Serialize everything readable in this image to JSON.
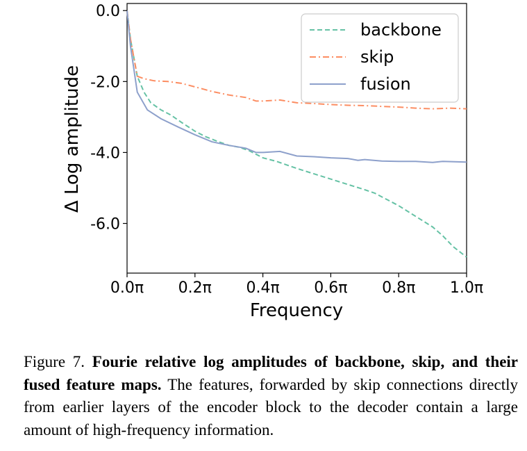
{
  "chart_data": {
    "type": "line",
    "xlabel": "Frequency",
    "ylabel": "Δ Log amplitude",
    "xlim": [
      0.0,
      1.0
    ],
    "ylim": [
      -7.4,
      0.2
    ],
    "xticks": [
      0.0,
      0.2,
      0.4,
      0.6,
      0.8,
      1.0
    ],
    "xtick_labels": [
      "0.0π",
      "0.2π",
      "0.4π",
      "0.6π",
      "0.8π",
      "1.0π"
    ],
    "yticks": [
      0.0,
      -2.0,
      -4.0,
      -6.0
    ],
    "ytick_labels": [
      "0.0",
      "-2.0",
      "-4.0",
      "-6.0"
    ],
    "grid": false,
    "legend_position": "top-right",
    "series": [
      {
        "name": "backbone",
        "color": "#66c2a5",
        "dash": "dashed",
        "points": [
          [
            0.0,
            0.0
          ],
          [
            0.01,
            -0.8
          ],
          [
            0.03,
            -1.85
          ],
          [
            0.05,
            -2.3
          ],
          [
            0.07,
            -2.6
          ],
          [
            0.1,
            -2.8
          ],
          [
            0.13,
            -2.95
          ],
          [
            0.16,
            -3.15
          ],
          [
            0.2,
            -3.4
          ],
          [
            0.23,
            -3.55
          ],
          [
            0.27,
            -3.7
          ],
          [
            0.3,
            -3.8
          ],
          [
            0.33,
            -3.85
          ],
          [
            0.36,
            -3.95
          ],
          [
            0.4,
            -4.15
          ],
          [
            0.44,
            -4.25
          ],
          [
            0.47,
            -4.35
          ],
          [
            0.5,
            -4.45
          ],
          [
            0.55,
            -4.6
          ],
          [
            0.6,
            -4.75
          ],
          [
            0.65,
            -4.9
          ],
          [
            0.7,
            -5.05
          ],
          [
            0.73,
            -5.15
          ],
          [
            0.77,
            -5.35
          ],
          [
            0.8,
            -5.5
          ],
          [
            0.85,
            -5.8
          ],
          [
            0.9,
            -6.1
          ],
          [
            0.93,
            -6.35
          ],
          [
            0.96,
            -6.65
          ],
          [
            1.0,
            -6.95
          ]
        ]
      },
      {
        "name": "skip",
        "color": "#fc8d62",
        "dash": "dashdot",
        "points": [
          [
            0.0,
            0.0
          ],
          [
            0.01,
            -0.8
          ],
          [
            0.03,
            -1.85
          ],
          [
            0.05,
            -1.92
          ],
          [
            0.08,
            -1.98
          ],
          [
            0.12,
            -2.0
          ],
          [
            0.16,
            -2.05
          ],
          [
            0.2,
            -2.15
          ],
          [
            0.25,
            -2.28
          ],
          [
            0.3,
            -2.38
          ],
          [
            0.35,
            -2.45
          ],
          [
            0.38,
            -2.55
          ],
          [
            0.4,
            -2.55
          ],
          [
            0.45,
            -2.52
          ],
          [
            0.5,
            -2.6
          ],
          [
            0.55,
            -2.62
          ],
          [
            0.6,
            -2.65
          ],
          [
            0.65,
            -2.67
          ],
          [
            0.7,
            -2.68
          ],
          [
            0.75,
            -2.7
          ],
          [
            0.8,
            -2.72
          ],
          [
            0.85,
            -2.75
          ],
          [
            0.9,
            -2.77
          ],
          [
            0.95,
            -2.75
          ],
          [
            1.0,
            -2.77
          ]
        ]
      },
      {
        "name": "fusion",
        "color": "#8da0cb",
        "dash": "solid",
        "points": [
          [
            0.0,
            0.0
          ],
          [
            0.01,
            -1.0
          ],
          [
            0.03,
            -2.3
          ],
          [
            0.06,
            -2.8
          ],
          [
            0.1,
            -3.05
          ],
          [
            0.15,
            -3.28
          ],
          [
            0.2,
            -3.5
          ],
          [
            0.25,
            -3.7
          ],
          [
            0.3,
            -3.8
          ],
          [
            0.35,
            -3.88
          ],
          [
            0.38,
            -4.0
          ],
          [
            0.4,
            -4.0
          ],
          [
            0.45,
            -3.97
          ],
          [
            0.5,
            -4.1
          ],
          [
            0.55,
            -4.12
          ],
          [
            0.6,
            -4.15
          ],
          [
            0.65,
            -4.17
          ],
          [
            0.68,
            -4.22
          ],
          [
            0.7,
            -4.2
          ],
          [
            0.75,
            -4.24
          ],
          [
            0.8,
            -4.25
          ],
          [
            0.85,
            -4.25
          ],
          [
            0.9,
            -4.28
          ],
          [
            0.93,
            -4.25
          ],
          [
            1.0,
            -4.27
          ]
        ]
      }
    ]
  },
  "caption": {
    "figure_label": "Figure 7.",
    "title": "Fourie relative log amplitudes of backbone, skip, and their fused feature maps.",
    "body": "The features, forwarded by skip connections directly from earlier layers of the encoder block to the decoder contain a large amount of high-frequency information."
  }
}
